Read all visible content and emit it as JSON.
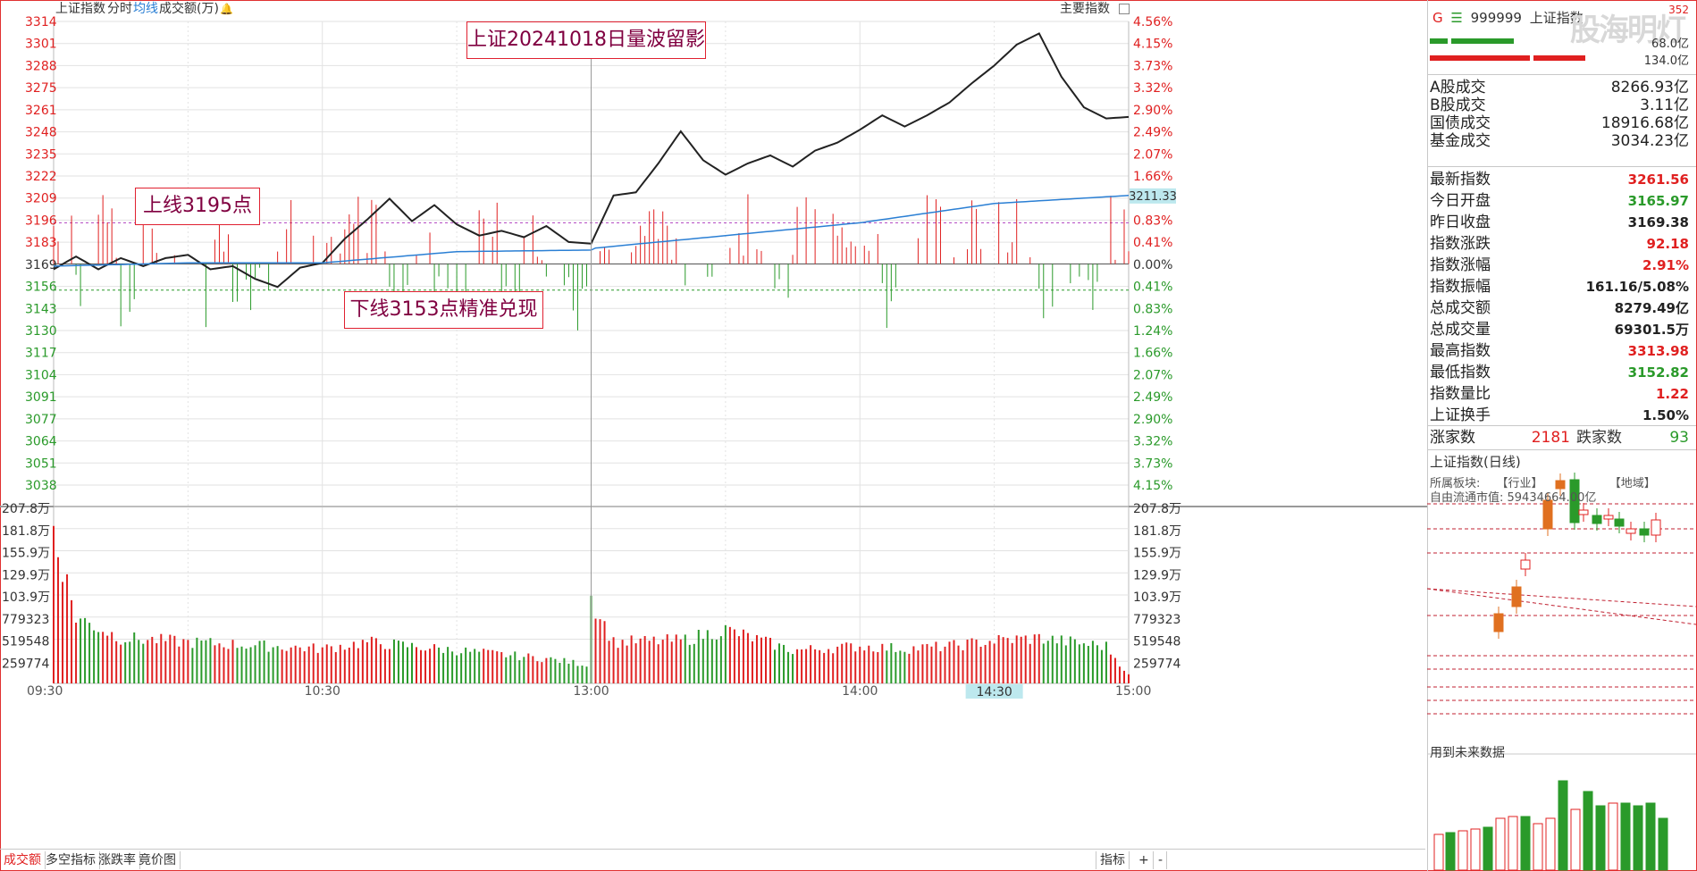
{
  "toolbar": {
    "index_name": "上证指数",
    "mode": "分时",
    "avg_line": "均线",
    "volume_label": "成交额(万)",
    "main_indicator": "主要指数"
  },
  "annotations": {
    "title": "上证20241018日量波留影",
    "upper": "上线3195点",
    "lower": "下线3153点精准兑现"
  },
  "price_axis": {
    "left": [
      "3314",
      "3301",
      "3288",
      "3275",
      "3261",
      "3248",
      "3235",
      "3222",
      "3209",
      "3196",
      "3183",
      "3169",
      "3156",
      "3143",
      "3130",
      "3117",
      "3104",
      "3091",
      "3077",
      "3064",
      "3051",
      "3038"
    ],
    "right": [
      "4.56%",
      "4.15%",
      "3.73%",
      "3.32%",
      "2.90%",
      "2.49%",
      "2.07%",
      "1.66%",
      "1.24%",
      "0.83%",
      "0.41%",
      "0.00%",
      "0.41%",
      "0.83%",
      "1.24%",
      "1.66%",
      "2.07%",
      "2.49%",
      "2.90%",
      "3.32%",
      "3.73%",
      "4.15%"
    ]
  },
  "volume_axis": [
    "207.8万",
    "181.8万",
    "155.9万",
    "129.9万",
    "103.9万",
    "779323",
    "519548",
    "259774"
  ],
  "time_axis": [
    "09:30",
    "10:30",
    "13:00",
    "14:00",
    "15:00"
  ],
  "cursor_time": "14:30",
  "avg_value_tag": "3211.33",
  "header": {
    "badge": "G",
    "code": "999999",
    "name": "上证指数",
    "corner": "352",
    "flow_1": "68.0亿",
    "flow_2": "134.0亿"
  },
  "turnover": [
    {
      "label": "A股成交",
      "value": "8266.93亿"
    },
    {
      "label": "B股成交",
      "value": "3.11亿"
    },
    {
      "label": "国债成交",
      "value": "18916.68亿"
    },
    {
      "label": "基金成交",
      "value": "3034.23亿"
    }
  ],
  "quote": [
    {
      "label": "最新指数",
      "value": "3261.56",
      "color": "red"
    },
    {
      "label": "今日开盘",
      "value": "3165.97",
      "color": "green"
    },
    {
      "label": "昨日收盘",
      "value": "3169.38",
      "color": "blk"
    },
    {
      "label": "指数涨跌",
      "value": "92.18",
      "color": "red"
    },
    {
      "label": "指数涨幅",
      "value": "2.91%",
      "color": "red"
    },
    {
      "label": "指数振幅",
      "value": "161.16/5.08%",
      "color": "blk"
    },
    {
      "label": "总成交额",
      "value": "8279.49亿",
      "color": "blk"
    },
    {
      "label": "总成交量",
      "value": "69301.5万",
      "color": "blk"
    },
    {
      "label": "最高指数",
      "value": "3313.98",
      "color": "red"
    },
    {
      "label": "最低指数",
      "value": "3152.82",
      "color": "green"
    },
    {
      "label": "指数量比",
      "value": "1.22",
      "color": "red"
    },
    {
      "label": "上证换手",
      "value": "1.50%",
      "color": "blk"
    }
  ],
  "breadth": {
    "up_label": "涨家数",
    "up_value": "2181",
    "down_label": "跌家数",
    "down_value": "93"
  },
  "mini_chart": {
    "title": "上证指数(日线)",
    "line1_a": "所属板块:",
    "line1_b": "【行业】",
    "line1_c": "【地域】",
    "line2": "自由流通市值: 59434664.00亿",
    "future_label": "用到未来数据"
  },
  "bottom_tabs": [
    "成交额",
    "多空指标",
    "涨跌率",
    "竟价图"
  ],
  "bottom_right": {
    "indicator": "指标",
    "plus": "+",
    "minus": "-"
  },
  "watermark": "股海明灯",
  "colors": {
    "up": "#e02020",
    "down": "#2a9a2a",
    "price_line": "#222222",
    "avg_line": "#2a7fd4",
    "tag_bg": "#bde8ee"
  },
  "chart_data": {
    "type": "line",
    "x_range": [
      "09:30",
      "15:00"
    ],
    "yclose": 3169.38,
    "ylim": [
      3031.5,
      3320.5
    ],
    "price_series": [
      [
        "09:30",
        3166
      ],
      [
        "09:35",
        3174
      ],
      [
        "09:40",
        3166
      ],
      [
        "09:45",
        3173
      ],
      [
        "09:50",
        3168
      ],
      [
        "09:55",
        3173
      ],
      [
        "10:00",
        3175
      ],
      [
        "10:05",
        3166
      ],
      [
        "10:10",
        3168
      ],
      [
        "10:15",
        3160
      ],
      [
        "10:20",
        3155
      ],
      [
        "10:25",
        3167
      ],
      [
        "10:30",
        3170
      ],
      [
        "10:35",
        3185
      ],
      [
        "10:40",
        3197
      ],
      [
        "10:45",
        3210
      ],
      [
        "10:50",
        3196
      ],
      [
        "10:55",
        3206
      ],
      [
        "11:00",
        3194
      ],
      [
        "11:05",
        3187
      ],
      [
        "11:10",
        3190
      ],
      [
        "11:15",
        3186
      ],
      [
        "11:20",
        3193
      ],
      [
        "11:25",
        3183
      ],
      [
        "11:30",
        3182
      ],
      [
        "13:00",
        3182
      ],
      [
        "13:05",
        3212
      ],
      [
        "13:10",
        3214
      ],
      [
        "13:15",
        3232
      ],
      [
        "13:20",
        3252
      ],
      [
        "13:25",
        3234
      ],
      [
        "13:30",
        3225
      ],
      [
        "13:35",
        3232
      ],
      [
        "13:40",
        3237
      ],
      [
        "13:45",
        3230
      ],
      [
        "13:50",
        3240
      ],
      [
        "13:55",
        3245
      ],
      [
        "14:00",
        3253
      ],
      [
        "14:05",
        3262
      ],
      [
        "14:10",
        3255
      ],
      [
        "14:15",
        3262
      ],
      [
        "14:20",
        3270
      ],
      [
        "14:25",
        3282
      ],
      [
        "14:30",
        3293
      ],
      [
        "14:35",
        3306
      ],
      [
        "14:40",
        3313
      ],
      [
        "14:45",
        3286
      ],
      [
        "14:50",
        3267
      ],
      [
        "14:55",
        3260
      ],
      [
        "15:00",
        3261
      ]
    ],
    "avg_series": [
      [
        "09:30",
        3168
      ],
      [
        "10:00",
        3170
      ],
      [
        "10:30",
        3170
      ],
      [
        "11:00",
        3177
      ],
      [
        "11:30",
        3178
      ],
      [
        "13:00",
        3179
      ],
      [
        "13:30",
        3187
      ],
      [
        "14:00",
        3195
      ],
      [
        "14:30",
        3207
      ],
      [
        "15:00",
        3212
      ]
    ],
    "reference_lines": [
      3195,
      3153
    ],
    "volume_series_wan": [
      [
        "09:30",
        185
      ],
      [
        "09:35",
        80
      ],
      [
        "09:45",
        55
      ],
      [
        "10:00",
        50
      ],
      [
        "10:30",
        42
      ],
      [
        "10:40",
        50
      ],
      [
        "11:00",
        40
      ],
      [
        "11:20",
        30
      ],
      [
        "11:30",
        22
      ],
      [
        "13:00",
        103
      ],
      [
        "13:05",
        50
      ],
      [
        "13:20",
        52
      ],
      [
        "13:30",
        65
      ],
      [
        "13:45",
        40
      ],
      [
        "14:00",
        45
      ],
      [
        "14:10",
        42
      ],
      [
        "14:20",
        45
      ],
      [
        "14:30",
        52
      ],
      [
        "14:40",
        55
      ],
      [
        "14:50",
        48
      ],
      [
        "14:55",
        45
      ],
      [
        "15:00",
        10
      ]
    ]
  }
}
